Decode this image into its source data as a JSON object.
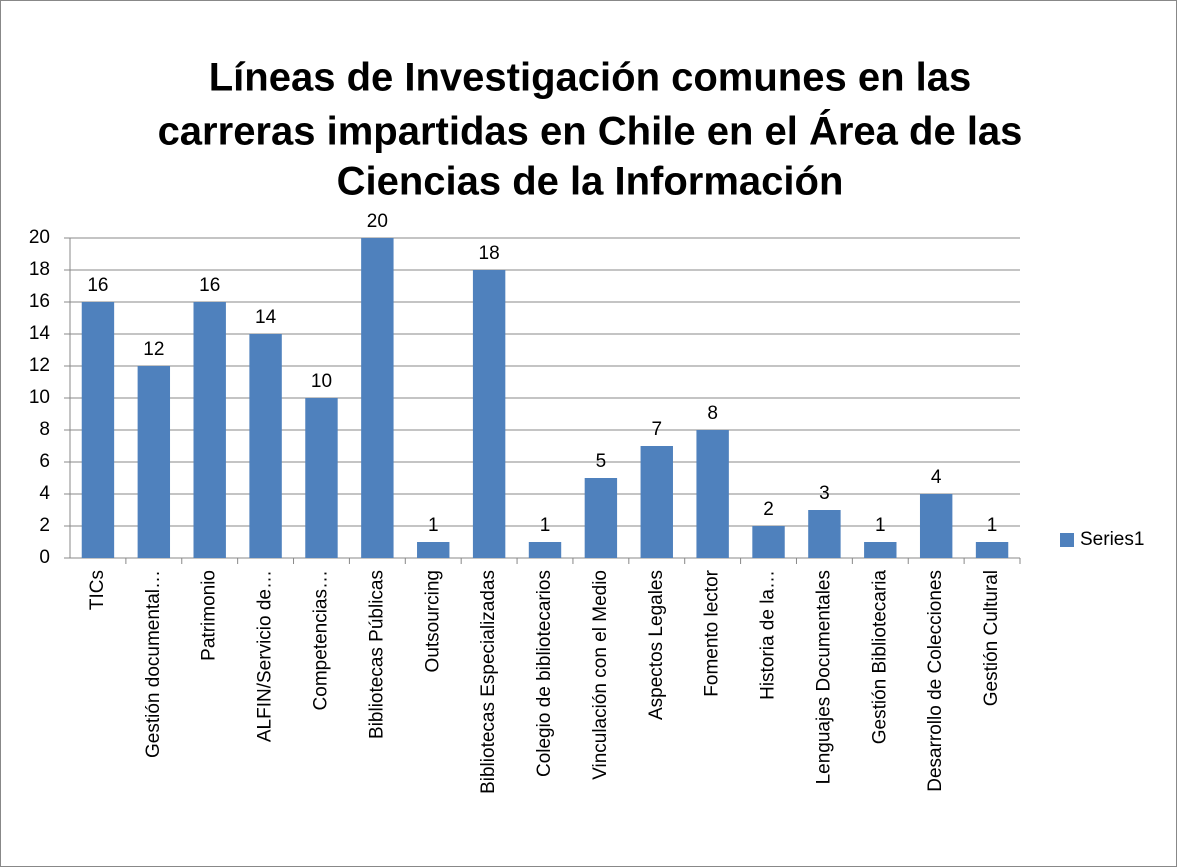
{
  "chart_data": {
    "type": "bar",
    "title": [
      "Líneas de Investigación comunes en las",
      "carreras impartidas en Chile en el Área de las",
      "Ciencias de la Información"
    ],
    "categories": [
      "TICs",
      "Gestión documental…",
      "Patrimonio",
      "ALFIN/Servicio de…",
      "Competencias…",
      "Bibliotecas Públicas",
      "Outsourcing",
      "Bibliotecas Especializadas",
      "Colegio de bibliotecarios",
      "Vinculación con el Medio",
      "Aspectos Legales",
      "Fomento lector",
      "Historia de la…",
      "Lenguajes Documentales",
      "Gestión Bibliotecaria",
      "Desarrollo de Colecciones",
      "Gestión Cultural"
    ],
    "series": [
      {
        "name": "Series1",
        "color": "#4f81bd",
        "values": [
          16,
          12,
          16,
          14,
          10,
          20,
          1,
          18,
          1,
          5,
          7,
          8,
          2,
          3,
          1,
          4,
          1
        ]
      }
    ],
    "ylim": [
      0,
      20
    ],
    "yticks": [
      0,
      2,
      4,
      6,
      8,
      10,
      12,
      14,
      16,
      18,
      20
    ],
    "grid": true,
    "legend": "right"
  }
}
